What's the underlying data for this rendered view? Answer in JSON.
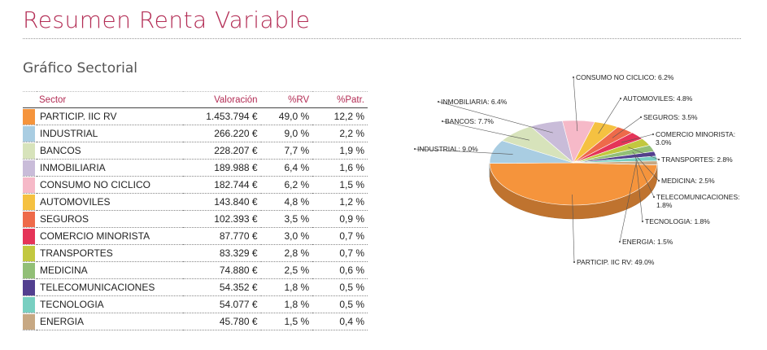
{
  "page": {
    "title": "Resumen Renta Variable",
    "section_title": "Gráfico Sectorial"
  },
  "table": {
    "headers": {
      "sector": "Sector",
      "valoracion": "Valoración",
      "prv": "%RV",
      "pat": "%Patr."
    },
    "rows": [
      {
        "sector": "PARTICIP. IIC RV",
        "valoracion": "1.453.794 €",
        "prv": "49,0 %",
        "pat": "12,2 %",
        "color": "#f5943c"
      },
      {
        "sector": "INDUSTRIAL",
        "valoracion": "266.220 €",
        "prv": "9,0 %",
        "pat": "2,2 %",
        "color": "#a9cde2"
      },
      {
        "sector": "BANCOS",
        "valoracion": "228.207 €",
        "prv": "7,7 %",
        "pat": "1,9 %",
        "color": "#d7e3bb"
      },
      {
        "sector": "INMOBILIARIA",
        "valoracion": "189.988 €",
        "prv": "6,4 %",
        "pat": "1,6 %",
        "color": "#c9bcd9"
      },
      {
        "sector": "CONSUMO NO CICLICO",
        "valoracion": "182.744 €",
        "prv": "6,2 %",
        "pat": "1,5 %",
        "color": "#f6b9c8"
      },
      {
        "sector": "AUTOMOVILES",
        "valoracion": "143.840 €",
        "prv": "4,8 %",
        "pat": "1,2 %",
        "color": "#f5c141"
      },
      {
        "sector": "SEGUROS",
        "valoracion": "102.393 €",
        "prv": "3,5 %",
        "pat": "0,9 %",
        "color": "#ee6a4a"
      },
      {
        "sector": "COMERCIO MINORISTA",
        "valoracion": "87.770 €",
        "prv": "3,0 %",
        "pat": "0,7 %",
        "color": "#e53458"
      },
      {
        "sector": "TRANSPORTES",
        "valoracion": "83.329 €",
        "prv": "2,8 %",
        "pat": "0,7 %",
        "color": "#c2c83f"
      },
      {
        "sector": "MEDICINA",
        "valoracion": "74.880 €",
        "prv": "2,5 %",
        "pat": "0,6 %",
        "color": "#92bf77"
      },
      {
        "sector": "TELECOMUNICACIONES",
        "valoracion": "54.352 €",
        "prv": "1,8 %",
        "pat": "0,5 %",
        "color": "#523f8f"
      },
      {
        "sector": "TECNOLOGIA",
        "valoracion": "54.077 €",
        "prv": "1,8 %",
        "pat": "0,5 %",
        "color": "#78cfc1"
      },
      {
        "sector": "ENERGIA",
        "valoracion": "45.780 €",
        "prv": "1,5 %",
        "pat": "0,4 %",
        "color": "#c7a883"
      }
    ]
  },
  "chart_data": {
    "type": "pie",
    "title": "",
    "slices": [
      {
        "label": "PARTICIP. IIC RV: 49.0%",
        "value": 49.0,
        "color": "#f5943c"
      },
      {
        "label": "INDUSTRIAL: 9.0%",
        "value": 9.0,
        "color": "#a9cde2"
      },
      {
        "label": "BANCOS: 7.7%",
        "value": 7.7,
        "color": "#d7e3bb"
      },
      {
        "label": "INMOBILIARIA: 6.4%",
        "value": 6.4,
        "color": "#c9bcd9"
      },
      {
        "label": "CONSUMO NO CICLICO: 6.2%",
        "value": 6.2,
        "color": "#f6b9c8"
      },
      {
        "label": "AUTOMOVILES: 4.8%",
        "value": 4.8,
        "color": "#f5c141"
      },
      {
        "label": "SEGUROS: 3.5%",
        "value": 3.5,
        "color": "#ee6a4a"
      },
      {
        "label": "COMERCIO MINORISTA: 3.0%",
        "value": 3.0,
        "color": "#e53458"
      },
      {
        "label": "TRANSPORTES: 2.8%",
        "value": 2.8,
        "color": "#c2c83f"
      },
      {
        "label": "MEDICINA: 2.5%",
        "value": 2.5,
        "color": "#92bf77"
      },
      {
        "label": "TELECOMUNICACIONES: 1.8%",
        "value": 1.8,
        "color": "#523f8f"
      },
      {
        "label": "TECNOLOGIA: 1.8%",
        "value": 1.8,
        "color": "#78cfc1"
      },
      {
        "label": "ENERGIA: 1.5%",
        "value": 1.5,
        "color": "#c7a883"
      }
    ]
  }
}
